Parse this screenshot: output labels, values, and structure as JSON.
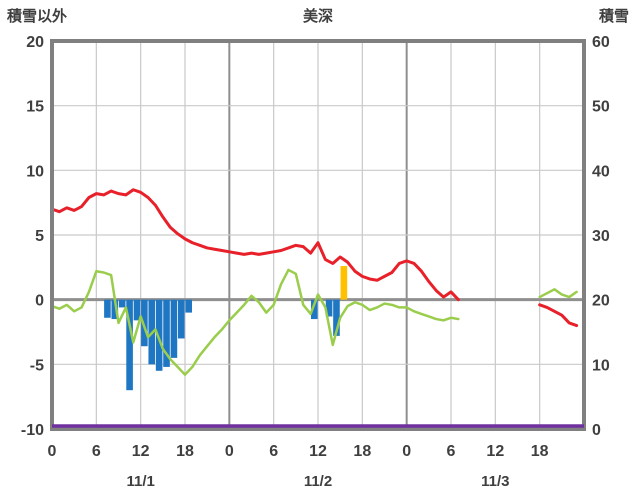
{
  "header": {
    "left_label": "積雪以外",
    "title": "美深",
    "right_label": "積雪"
  },
  "colors": {
    "frame": "#808080",
    "grid_minor": "#c9c9c9",
    "grid_major": "#8f8f8f",
    "zero_line": "#8f8f8f",
    "text": "#3f3f3f",
    "temperature_line": "#e8202a",
    "green_line": "#9acd4c",
    "blue_bars": "#1f77c4",
    "orange_bar": "#ffc000",
    "purple_line": "#7030a0"
  },
  "chart_data": {
    "type": "line",
    "title": "美深",
    "left_axis": {
      "label": "積雪以外",
      "min": -10,
      "max": 20,
      "ticks": [
        20,
        15,
        10,
        5,
        0,
        -5,
        -10
      ]
    },
    "right_axis": {
      "label": "積雪",
      "min": 0,
      "max": 60,
      "ticks": [
        60,
        50,
        40,
        30,
        20,
        10,
        0
      ]
    },
    "x_axis": {
      "hours_span": 72,
      "tick_interval": 6,
      "hour_labels": [
        "0",
        "6",
        "12",
        "18",
        "0",
        "6",
        "12",
        "18",
        "0",
        "6",
        "12",
        "18"
      ],
      "date_labels": [
        "11/1",
        "11/2",
        "11/3"
      ]
    },
    "grid": true,
    "legend": "none",
    "series": [
      {
        "name": "temperature-red-line",
        "type": "line",
        "axis": "left",
        "color": "#e8202a",
        "width": 3,
        "values": [
          7.0,
          6.8,
          7.1,
          6.9,
          7.2,
          7.9,
          8.2,
          8.1,
          8.4,
          8.2,
          8.1,
          8.5,
          8.3,
          7.9,
          7.3,
          6.4,
          5.6,
          5.1,
          4.7,
          4.4,
          4.2,
          4.0,
          3.9,
          3.8,
          3.7,
          3.6,
          3.5,
          3.6,
          3.5,
          3.6,
          3.7,
          3.8,
          4.0,
          4.2,
          4.1,
          3.6,
          4.4,
          3.1,
          2.8,
          3.3,
          2.9,
          2.2,
          1.8,
          1.6,
          1.5,
          1.8,
          2.1,
          2.8,
          3.0,
          2.8,
          2.2,
          1.4,
          0.7,
          0.2,
          0.6,
          0.0,
          null,
          null,
          null,
          null,
          null,
          null,
          null,
          null,
          null,
          null,
          -0.4,
          -0.6,
          -0.9,
          -1.2,
          -1.8,
          -2.0
        ]
      },
      {
        "name": "green-line",
        "type": "line",
        "axis": "left",
        "color": "#9acd4c",
        "width": 2.5,
        "values": [
          -0.5,
          -0.7,
          -0.4,
          -0.9,
          -0.6,
          0.6,
          2.2,
          2.1,
          1.9,
          -1.8,
          -0.6,
          -3.3,
          -1.3,
          -2.9,
          -2.3,
          -3.8,
          -4.6,
          -5.2,
          -5.8,
          -5.2,
          -4.3,
          -3.6,
          -2.9,
          -2.3,
          -1.6,
          -1.0,
          -0.4,
          0.3,
          -0.2,
          -1.0,
          -0.4,
          1.2,
          2.3,
          2.0,
          -0.4,
          -1.1,
          0.4,
          -0.6,
          -3.5,
          -1.4,
          -0.5,
          -0.2,
          -0.4,
          -0.8,
          -0.6,
          -0.3,
          -0.4,
          -0.6,
          -0.6,
          -0.9,
          -1.1,
          -1.3,
          -1.5,
          -1.6,
          -1.4,
          -1.5,
          null,
          null,
          null,
          null,
          null,
          null,
          null,
          null,
          null,
          null,
          0.2,
          0.5,
          0.8,
          0.4,
          0.2,
          0.6
        ]
      },
      {
        "name": "blue-bars",
        "type": "bar",
        "axis": "left",
        "color": "#1f77c4",
        "values": [
          null,
          null,
          null,
          null,
          null,
          null,
          null,
          -1.4,
          -1.5,
          -0.6,
          -7.0,
          -1.6,
          -3.6,
          -5.0,
          -5.5,
          -5.2,
          -4.5,
          -3.0,
          -1.0,
          null,
          null,
          null,
          null,
          null,
          null,
          null,
          null,
          null,
          null,
          null,
          null,
          null,
          null,
          null,
          null,
          -1.5,
          null,
          -1.3,
          -2.8,
          null,
          null,
          null,
          null,
          null,
          null,
          null,
          null,
          null,
          null,
          null,
          null,
          null,
          null,
          null,
          null,
          null,
          null,
          null,
          null,
          null,
          null,
          null,
          null,
          null,
          null,
          null,
          null,
          null,
          null,
          null,
          null,
          null
        ]
      },
      {
        "name": "orange-bar",
        "type": "bar",
        "axis": "left",
        "color": "#ffc000",
        "values": [
          null,
          null,
          null,
          null,
          null,
          null,
          null,
          null,
          null,
          null,
          null,
          null,
          null,
          null,
          null,
          null,
          null,
          null,
          null,
          null,
          null,
          null,
          null,
          null,
          null,
          null,
          null,
          null,
          null,
          null,
          null,
          null,
          null,
          null,
          null,
          null,
          null,
          null,
          null,
          2.6,
          null,
          null,
          null,
          null,
          null,
          null,
          null,
          null,
          null,
          null,
          null,
          null,
          null,
          null,
          null,
          null,
          null,
          null,
          null,
          null,
          null,
          null,
          null,
          null,
          null,
          null,
          null,
          null,
          null,
          null,
          null,
          null
        ]
      },
      {
        "name": "snow-depth-purple-line",
        "type": "line",
        "axis": "right",
        "color": "#7030a0",
        "width": 3.5,
        "constant": 0
      }
    ]
  }
}
